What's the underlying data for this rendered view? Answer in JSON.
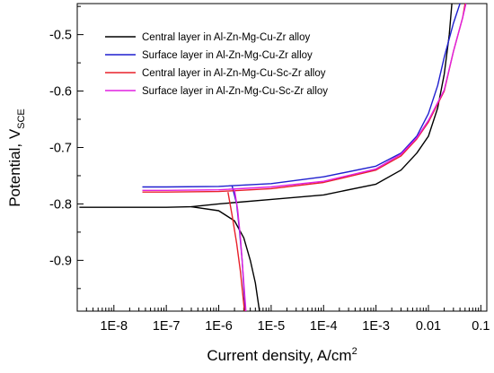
{
  "chart_data": {
    "type": "line",
    "xlabel": "Current density, A/cm",
    "xlabel_sup": "2",
    "ylabel": "Potential, V",
    "ylabel_sub": "SCE",
    "x_scale": "log",
    "xlim": [
      2e-09,
      0.13
    ],
    "ylim": [
      -0.99,
      -0.445
    ],
    "x_ticks": [
      1e-08,
      1e-07,
      1e-06,
      1e-05,
      0.0001,
      0.001,
      0.01,
      0.1
    ],
    "x_tick_labels": [
      "1E-8",
      "1E-7",
      "1E-6",
      "1E-5",
      "1E-4",
      "1E-3",
      "0.01",
      "0.1"
    ],
    "y_ticks": [
      -0.5,
      -0.6,
      -0.7,
      -0.8,
      -0.9
    ],
    "y_tick_labels": [
      "-0.5",
      "-0.6",
      "-0.7",
      "-0.8",
      "-0.9"
    ],
    "grid": false,
    "legend_position": "top-left",
    "series": [
      {
        "name": "Central layer  in Al-Zn-Mg-Cu-Zr alloy",
        "color": "#000000",
        "anodic": [
          [
            2.2e-09,
            -0.806
          ],
          [
            1e-08,
            -0.806
          ],
          [
            1e-07,
            -0.806
          ],
          [
            3e-07,
            -0.805
          ],
          [
            1e-06,
            -0.8
          ],
          [
            1e-05,
            -0.792
          ],
          [
            0.0001,
            -0.784
          ],
          [
            0.001,
            -0.765
          ],
          [
            0.003,
            -0.74
          ],
          [
            0.006,
            -0.71
          ],
          [
            0.01,
            -0.68
          ],
          [
            0.015,
            -0.63
          ],
          [
            0.02,
            -0.57
          ],
          [
            0.025,
            -0.5
          ],
          [
            0.028,
            -0.445
          ]
        ],
        "cathodic": [
          [
            3e-07,
            -0.805
          ],
          [
            1e-06,
            -0.812
          ],
          [
            2e-06,
            -0.83
          ],
          [
            3e-06,
            -0.86
          ],
          [
            4e-06,
            -0.9
          ],
          [
            5e-06,
            -0.94
          ],
          [
            6e-06,
            -0.99
          ]
        ]
      },
      {
        "name": "Surface layer  in Al-Zn-Mg-Cu-Zr alloy",
        "color": "#1f1fcf",
        "anodic": [
          [
            3.5e-08,
            -0.77
          ],
          [
            1e-07,
            -0.77
          ],
          [
            1e-06,
            -0.769
          ],
          [
            1e-05,
            -0.764
          ],
          [
            0.0001,
            -0.752
          ],
          [
            0.001,
            -0.733
          ],
          [
            0.003,
            -0.71
          ],
          [
            0.006,
            -0.68
          ],
          [
            0.01,
            -0.64
          ],
          [
            0.015,
            -0.59
          ],
          [
            0.02,
            -0.54
          ],
          [
            0.03,
            -0.48
          ],
          [
            0.04,
            -0.445
          ]
        ],
        "cathodic": [
          [
            1.8e-06,
            -0.768
          ],
          [
            2.2e-06,
            -0.8
          ],
          [
            2.5e-06,
            -0.85
          ],
          [
            2.8e-06,
            -0.9
          ],
          [
            3.2e-06,
            -0.99
          ]
        ]
      },
      {
        "name": "Central layer  in Al-Zn-Mg-Cu-Sc-Zr alloy",
        "color": "#e8202a",
        "anodic": [
          [
            3.5e-08,
            -0.779
          ],
          [
            1e-07,
            -0.779
          ],
          [
            1e-06,
            -0.778
          ],
          [
            1e-05,
            -0.773
          ],
          [
            0.0001,
            -0.762
          ],
          [
            0.001,
            -0.74
          ],
          [
            0.003,
            -0.715
          ],
          [
            0.006,
            -0.685
          ],
          [
            0.01,
            -0.655
          ],
          [
            0.02,
            -0.6
          ],
          [
            0.03,
            -0.53
          ],
          [
            0.045,
            -0.47
          ],
          [
            0.05,
            -0.445
          ]
        ],
        "cathodic": [
          [
            1.5e-06,
            -0.779
          ],
          [
            1.8e-06,
            -0.82
          ],
          [
            2.2e-06,
            -0.87
          ],
          [
            2.6e-06,
            -0.92
          ],
          [
            3.1e-06,
            -0.99
          ]
        ]
      },
      {
        "name": "Surface layer  in Al-Zn-Mg-Cu-Sc-Zr alloy",
        "color": "#e020e0",
        "anodic": [
          [
            3.5e-08,
            -0.776
          ],
          [
            1e-07,
            -0.776
          ],
          [
            1e-06,
            -0.775
          ],
          [
            1e-05,
            -0.77
          ],
          [
            0.0001,
            -0.76
          ],
          [
            0.001,
            -0.738
          ],
          [
            0.003,
            -0.712
          ],
          [
            0.006,
            -0.683
          ],
          [
            0.01,
            -0.652
          ],
          [
            0.02,
            -0.598
          ],
          [
            0.03,
            -0.53
          ],
          [
            0.045,
            -0.47
          ],
          [
            0.052,
            -0.445
          ]
        ],
        "cathodic": [
          [
            2e-06,
            -0.775
          ],
          [
            2.3e-06,
            -0.81
          ],
          [
            2.6e-06,
            -0.86
          ],
          [
            2.9e-06,
            -0.92
          ],
          [
            3.3e-06,
            -0.99
          ]
        ]
      }
    ]
  }
}
